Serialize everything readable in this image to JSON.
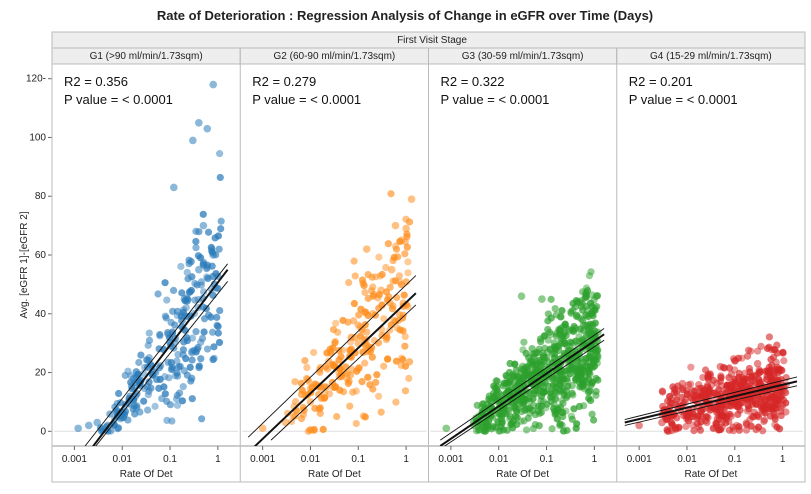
{
  "chart_data": {
    "type": "scatter",
    "title": "Rate of Deterioration : Regression Analysis of Change in eGFR over Time (Days)",
    "facet_header": "First Visit Stage",
    "xlabel": "Rate Of Det",
    "ylabel": "Avg. [eGFR 1]-[eGFR 2]",
    "x_scale": "log",
    "xlim": [
      0.0005,
      2
    ],
    "ylim": [
      -5,
      125
    ],
    "x_ticks": [
      0.001,
      0.01,
      0.1,
      1
    ],
    "x_tick_labels": [
      "0.001",
      "0.01",
      "0.1",
      "1"
    ],
    "y_ticks": [
      0,
      20,
      40,
      60,
      80,
      100,
      120
    ],
    "y_tick_labels": [
      "0",
      "20",
      "40",
      "60",
      "80",
      "100",
      "120-"
    ],
    "grid": false,
    "panels": [
      {
        "name": "G1 (>90 ml/min/1.73sqm)",
        "color": "#2b7bba",
        "r2": "R2 = 0.356",
        "p": "P value = < 0.0001",
        "n": 260,
        "fit": {
          "x": [
            0.002,
            1.6
          ],
          "y": [
            -7,
            55
          ]
        },
        "ci_upper": {
          "x": [
            0.0015,
            1.6
          ],
          "y": [
            -6,
            57
          ]
        },
        "ci_lower": {
          "x": [
            0.0025,
            1.6
          ],
          "y": [
            -6,
            51
          ]
        },
        "points": [
          [
            0.0012,
            1
          ],
          [
            0.002,
            2
          ],
          [
            0.003,
            3
          ],
          [
            0.005,
            2
          ],
          [
            0.008,
            5
          ],
          [
            0.02,
            8
          ],
          [
            0.05,
            20
          ],
          [
            0.1,
            30
          ],
          [
            0.2,
            45
          ],
          [
            0.4,
            55
          ],
          [
            0.8,
            60
          ],
          [
            0.12,
            83
          ],
          [
            0.3,
            99
          ],
          [
            0.4,
            105
          ],
          [
            0.6,
            103
          ],
          [
            0.8,
            118
          ],
          [
            0.5,
            70
          ],
          [
            0.5,
            57
          ]
        ]
      },
      {
        "name": "G2 (60-90 ml/min/1.73sqm)",
        "color": "#ff8c1a",
        "r2": "R2 = 0.279",
        "p": "P value = < 0.0001",
        "n": 240,
        "fit": {
          "x": [
            0.0006,
            1.6
          ],
          "y": [
            -6,
            47
          ]
        },
        "ci_upper": {
          "x": [
            0.0005,
            1.6
          ],
          "y": [
            -2,
            53
          ]
        },
        "ci_lower": {
          "x": [
            0.0015,
            1.6
          ],
          "y": [
            -3,
            43
          ]
        },
        "points": [
          [
            0.001,
            1
          ],
          [
            0.003,
            3
          ],
          [
            0.01,
            10
          ],
          [
            0.05,
            20
          ],
          [
            0.1,
            30
          ],
          [
            0.2,
            40
          ],
          [
            0.5,
            55
          ],
          [
            0.8,
            65
          ],
          [
            1.3,
            79
          ],
          [
            0.15,
            62
          ],
          [
            0.6,
            70
          ],
          [
            1.0,
            69
          ],
          [
            0.3,
            48
          ],
          [
            0.03,
            15
          ]
        ]
      },
      {
        "name": "G3 (30-59 ml/min/1.73sqm)",
        "color": "#2ca02c",
        "r2": "R2 = 0.322",
        "p": "P value = < 0.0001",
        "n": 700,
        "fit": {
          "x": [
            0.0006,
            1.6
          ],
          "y": [
            -5,
            33
          ]
        },
        "ci_upper": {
          "x": [
            0.0006,
            1.6
          ],
          "y": [
            -3,
            35
          ]
        },
        "ci_lower": {
          "x": [
            0.0006,
            1.6
          ],
          "y": [
            -6,
            31
          ]
        },
        "points": [
          [
            0.0008,
            1
          ],
          [
            0.003,
            3
          ],
          [
            0.01,
            6
          ],
          [
            0.03,
            12
          ],
          [
            0.05,
            20
          ],
          [
            0.1,
            25
          ],
          [
            0.2,
            30
          ],
          [
            0.4,
            35
          ],
          [
            0.03,
            46
          ],
          [
            0.08,
            45
          ],
          [
            0.5,
            44
          ],
          [
            0.9,
            40
          ],
          [
            1.1,
            46
          ]
        ]
      },
      {
        "name": "G4 (15-29 ml/min/1.73sqm)",
        "color": "#d62728",
        "r2": "R2 = 0.201",
        "p": "P value = < 0.0001",
        "n": 520,
        "fit": {
          "x": [
            0.0005,
            2
          ],
          "y": [
            3,
            17
          ]
        },
        "ci_upper": {
          "x": [
            0.0005,
            2
          ],
          "y": [
            4,
            18.5
          ]
        },
        "ci_lower": {
          "x": [
            0.0005,
            2
          ],
          "y": [
            2,
            15.5
          ]
        },
        "points": [
          [
            0.001,
            2
          ],
          [
            0.003,
            3
          ],
          [
            0.01,
            5
          ],
          [
            0.03,
            8
          ],
          [
            0.1,
            10
          ],
          [
            0.2,
            12
          ],
          [
            0.05,
            22
          ],
          [
            0.1,
            24
          ],
          [
            0.3,
            23
          ],
          [
            0.5,
            20
          ],
          [
            0.8,
            14
          ]
        ]
      }
    ]
  }
}
